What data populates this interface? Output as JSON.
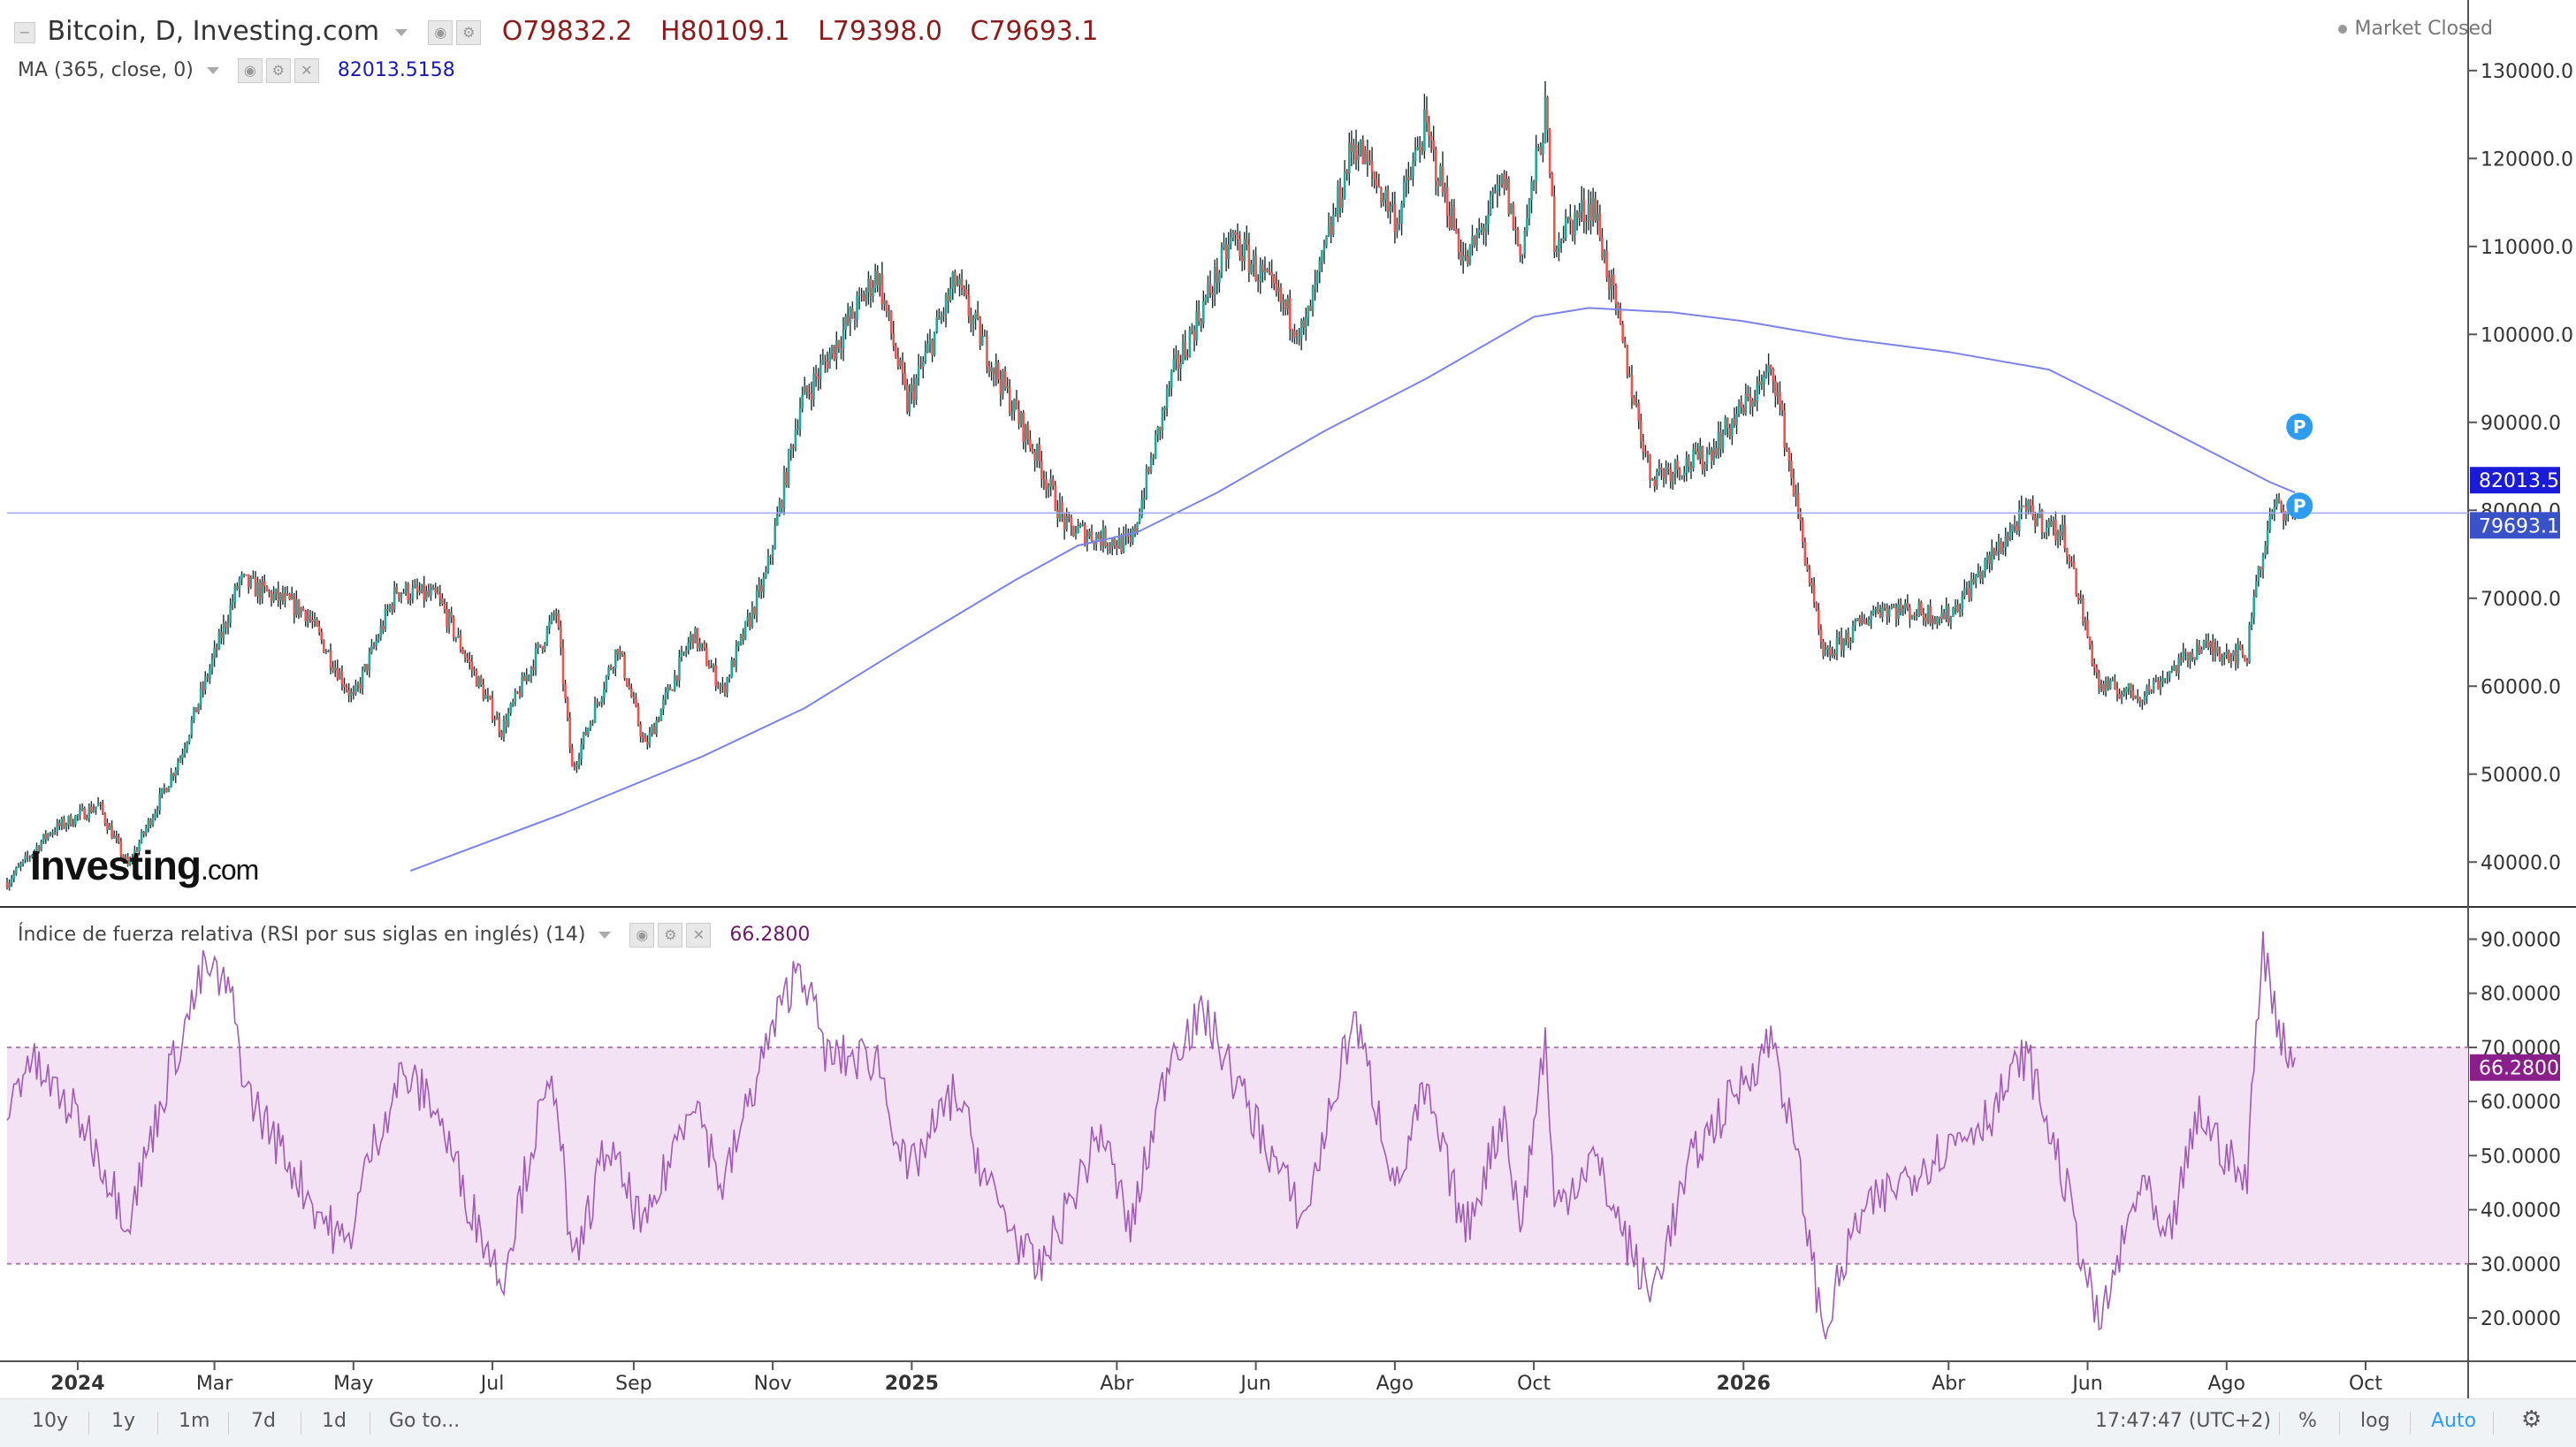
{
  "header": {
    "title": "Bitcoin, D, Investing.com",
    "ohlc": {
      "o": "O79832.2",
      "h": "H80109.1",
      "l": "L79398.0",
      "c": "C79693.1"
    },
    "ma_label": "MA (365, close, 0)",
    "ma_value": "82013.5158",
    "market_status": "Market Closed"
  },
  "rsi_header": {
    "label": "Índice de fuerza relativa (RSI por sus siglas en inglés) (14)",
    "value": "66.2800"
  },
  "logo": {
    "main": "Investing",
    "suffix": ".com"
  },
  "toolbar": {
    "ranges": [
      "10y",
      "1y",
      "1m",
      "7d",
      "1d"
    ],
    "goto": "Go to...",
    "clock": "17:47:47 (UTC+2)",
    "percent": "%",
    "log": "log",
    "auto": "Auto"
  },
  "colors": {
    "up": "#26a69a",
    "down": "#ef5350",
    "ma": "#7b83e8",
    "rsi": "#a05bb5",
    "rsi_band": "#f3e2f3",
    "price_tag": "#3a52c8",
    "ma_tag": "#1a1ad9",
    "rsi_tag": "#8a1e8a",
    "marker": "#2e9cf0"
  },
  "chart_data": [
    {
      "type": "candlestick",
      "title": "Bitcoin, D, Investing.com",
      "x_ticks": [
        "2024",
        "Mar",
        "May",
        "Jul",
        "Sep",
        "Nov",
        "2025",
        "Abr",
        "Jun",
        "Ago",
        "Oct",
        "2026",
        "Abr",
        "Jun",
        "Ago",
        "Oct"
      ],
      "x_ticks_bold": [
        "2024",
        "2025",
        "2026"
      ],
      "y_ticks": [
        "130000.0",
        "120000.0",
        "110000.0",
        "100000.0",
        "90000.0",
        "80000.0",
        "70000.0",
        "60000.0",
        "50000.0",
        "40000.0"
      ],
      "ylim": [
        35000,
        134000
      ],
      "close_path": [
        [
          "2023-12-01",
          37700
        ],
        [
          "2023-12-20",
          43500
        ],
        [
          "2024-01-10",
          46500
        ],
        [
          "2024-01-23",
          39500
        ],
        [
          "2024-02-15",
          52000
        ],
        [
          "2024-03-12",
          72000
        ],
        [
          "2024-04-10",
          68500
        ],
        [
          "2024-05-01",
          58500
        ],
        [
          "2024-05-20",
          71000
        ],
        [
          "2024-06-07",
          70000
        ],
        [
          "2024-07-05",
          55000
        ],
        [
          "2024-07-29",
          68500
        ],
        [
          "2024-08-05",
          50500
        ],
        [
          "2024-08-25",
          64500
        ],
        [
          "2024-09-06",
          53000
        ],
        [
          "2024-09-27",
          66000
        ],
        [
          "2024-10-10",
          59500
        ],
        [
          "2024-10-29",
          72500
        ],
        [
          "2024-11-13",
          92000
        ],
        [
          "2024-12-17",
          107000
        ],
        [
          "2024-12-30",
          92000
        ],
        [
          "2025-01-20",
          106000
        ],
        [
          "2025-02-03",
          98000
        ],
        [
          "2025-02-25",
          86000
        ],
        [
          "2025-03-10",
          78000
        ],
        [
          "2025-04-07",
          76000
        ],
        [
          "2025-04-25",
          95000
        ],
        [
          "2025-05-22",
          111000
        ],
        [
          "2025-06-22",
          100000
        ],
        [
          "2025-07-14",
          122000
        ],
        [
          "2025-08-02",
          113000
        ],
        [
          "2025-08-14",
          123500
        ],
        [
          "2025-09-01",
          108000
        ],
        [
          "2025-09-18",
          117500
        ],
        [
          "2025-09-25",
          109000
        ],
        [
          "2025-10-06",
          125000
        ],
        [
          "2025-10-10",
          111000
        ],
        [
          "2025-10-27",
          115000
        ],
        [
          "2025-11-21",
          84000
        ],
        [
          "2025-12-15",
          86000
        ],
        [
          "2026-01-14",
          96000
        ],
        [
          "2026-02-05",
          63000
        ],
        [
          "2026-03-01",
          69000
        ],
        [
          "2026-04-01",
          68000
        ],
        [
          "2026-05-05",
          80000
        ],
        [
          "2026-05-22",
          77000
        ],
        [
          "2026-06-06",
          60000
        ],
        [
          "2026-06-25",
          59000
        ],
        [
          "2026-07-20",
          64500
        ],
        [
          "2026-08-10",
          63500
        ],
        [
          "2026-08-13",
          71000
        ],
        [
          "2026-08-22",
          80500
        ],
        [
          "2026-08-31",
          79693
        ]
      ],
      "ma_path": [
        [
          "2024-05-26",
          39000
        ],
        [
          "2024-08-01",
          45500
        ],
        [
          "2024-10-01",
          52000
        ],
        [
          "2024-11-15",
          57500
        ],
        [
          "2025-01-01",
          65000
        ],
        [
          "2025-02-15",
          72000
        ],
        [
          "2025-03-15",
          76000
        ],
        [
          "2025-04-10",
          77500
        ],
        [
          "2025-05-15",
          82000
        ],
        [
          "2025-07-01",
          89000
        ],
        [
          "2025-08-15",
          95000
        ],
        [
          "2025-10-01",
          102000
        ],
        [
          "2025-10-25",
          103000
        ],
        [
          "2025-12-01",
          102500
        ],
        [
          "2026-01-01",
          101500
        ],
        [
          "2026-02-15",
          99500
        ],
        [
          "2026-04-01",
          98000
        ],
        [
          "2026-05-15",
          96000
        ],
        [
          "2026-06-15",
          92000
        ],
        [
          "2026-07-15",
          88000
        ],
        [
          "2026-08-20",
          83200
        ],
        [
          "2026-08-31",
          82013.5
        ]
      ],
      "price_line": 79693.1,
      "last_price_label": "79693.1",
      "ma_value_label": "82013.5",
      "markers": [
        "P",
        "P"
      ]
    },
    {
      "type": "line",
      "title": "Índice de fuerza relativa (RSI por sus siglas en inglés) (14)",
      "y_ticks": [
        "90.0000",
        "80.0000",
        "70.0000",
        "60.0000",
        "50.0000",
        "40.0000",
        "30.0000",
        "20.0000"
      ],
      "ylim": [
        12,
        94
      ],
      "band": [
        30,
        70
      ],
      "rsi_path": [
        [
          "2023-12-01",
          58
        ],
        [
          "2023-12-10",
          68
        ],
        [
          "2023-12-22",
          62
        ],
        [
          "2024-01-05",
          55
        ],
        [
          "2024-01-23",
          38
        ],
        [
          "2024-02-10",
          65
        ],
        [
          "2024-02-26",
          85
        ],
        [
          "2024-03-08",
          80
        ],
        [
          "2024-03-15",
          62
        ],
        [
          "2024-03-25",
          55
        ],
        [
          "2024-04-15",
          40
        ],
        [
          "2024-04-28",
          33
        ],
        [
          "2024-05-08",
          50
        ],
        [
          "2024-05-22",
          65
        ],
        [
          "2024-06-05",
          60
        ],
        [
          "2024-06-20",
          42
        ],
        [
          "2024-07-05",
          27
        ],
        [
          "2024-07-20",
          55
        ],
        [
          "2024-07-29",
          64
        ],
        [
          "2024-08-05",
          28
        ],
        [
          "2024-08-20",
          52
        ],
        [
          "2024-09-06",
          36
        ],
        [
          "2024-09-27",
          62
        ],
        [
          "2024-10-10",
          44
        ],
        [
          "2024-10-29",
          70
        ],
        [
          "2024-11-13",
          86
        ],
        [
          "2024-11-25",
          68
        ],
        [
          "2024-12-17",
          68
        ],
        [
          "2024-12-30",
          46
        ],
        [
          "2025-01-20",
          62
        ],
        [
          "2025-02-03",
          45
        ],
        [
          "2025-02-25",
          28
        ],
        [
          "2025-03-10",
          40
        ],
        [
          "2025-03-25",
          55
        ],
        [
          "2025-04-07",
          36
        ],
        [
          "2025-04-25",
          70
        ],
        [
          "2025-05-10",
          76
        ],
        [
          "2025-05-25",
          62
        ],
        [
          "2025-06-22",
          38
        ],
        [
          "2025-07-14",
          76
        ],
        [
          "2025-08-02",
          44
        ],
        [
          "2025-08-14",
          62
        ],
        [
          "2025-09-01",
          36
        ],
        [
          "2025-09-18",
          58
        ],
        [
          "2025-09-25",
          36
        ],
        [
          "2025-10-06",
          72
        ],
        [
          "2025-10-10",
          40
        ],
        [
          "2025-10-27",
          50
        ],
        [
          "2025-11-10",
          35
        ],
        [
          "2025-11-21",
          24
        ],
        [
          "2025-12-10",
          50
        ],
        [
          "2026-01-14",
          72
        ],
        [
          "2026-01-25",
          48
        ],
        [
          "2026-02-05",
          17
        ],
        [
          "2026-02-20",
          38
        ],
        [
          "2026-03-10",
          45
        ],
        [
          "2026-04-01",
          52
        ],
        [
          "2026-04-20",
          58
        ],
        [
          "2026-05-05",
          69
        ],
        [
          "2026-05-22",
          45
        ],
        [
          "2026-06-06",
          18
        ],
        [
          "2026-06-25",
          46
        ],
        [
          "2026-07-05",
          32
        ],
        [
          "2026-07-20",
          58
        ],
        [
          "2026-08-10",
          44
        ],
        [
          "2026-08-13",
          70
        ],
        [
          "2026-08-17",
          88
        ],
        [
          "2026-08-24",
          74
        ],
        [
          "2026-08-31",
          66.28
        ]
      ],
      "value_label": "66.2800"
    }
  ]
}
